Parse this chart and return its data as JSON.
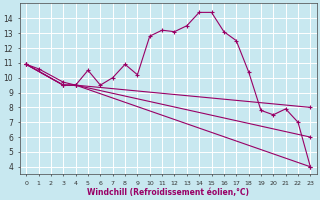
{
  "color": "#990066",
  "bg_color": "#c8e8f0",
  "grid_color": "#ffffff",
  "ylim": [
    3.5,
    15.0
  ],
  "xlim": [
    -0.5,
    23.5
  ],
  "yticks": [
    4,
    5,
    6,
    7,
    8,
    9,
    10,
    11,
    12,
    13,
    14
  ],
  "xticks": [
    0,
    1,
    2,
    3,
    4,
    5,
    6,
    7,
    8,
    9,
    10,
    11,
    12,
    13,
    14,
    15,
    16,
    17,
    18,
    19,
    20,
    21,
    22,
    23
  ],
  "xlabel": "Windchill (Refroidissement éolien,°C)",
  "marker": "+",
  "markersize": 3,
  "linewidth": 0.8,
  "line1_x": [
    0,
    1,
    3,
    4,
    5,
    6,
    7,
    8,
    9,
    10,
    11,
    12,
    13,
    14,
    15,
    16,
    17,
    18,
    19,
    20,
    21,
    22,
    23
  ],
  "line1_y": [
    10.9,
    10.6,
    9.7,
    9.5,
    10.5,
    9.5,
    10.0,
    10.9,
    10.2,
    12.8,
    13.2,
    13.1,
    13.5,
    14.4,
    14.4,
    13.1,
    12.5,
    10.4,
    7.8,
    7.5,
    7.9,
    7.0,
    4.0
  ],
  "line2_x": [
    0,
    3,
    4,
    23
  ],
  "line2_y": [
    10.9,
    9.5,
    9.5,
    8.0
  ],
  "line3_x": [
    0,
    3,
    4,
    23
  ],
  "line3_y": [
    10.9,
    9.5,
    9.5,
    6.0
  ],
  "line4_x": [
    0,
    3,
    4,
    23
  ],
  "line4_y": [
    10.9,
    9.5,
    9.5,
    4.0
  ]
}
